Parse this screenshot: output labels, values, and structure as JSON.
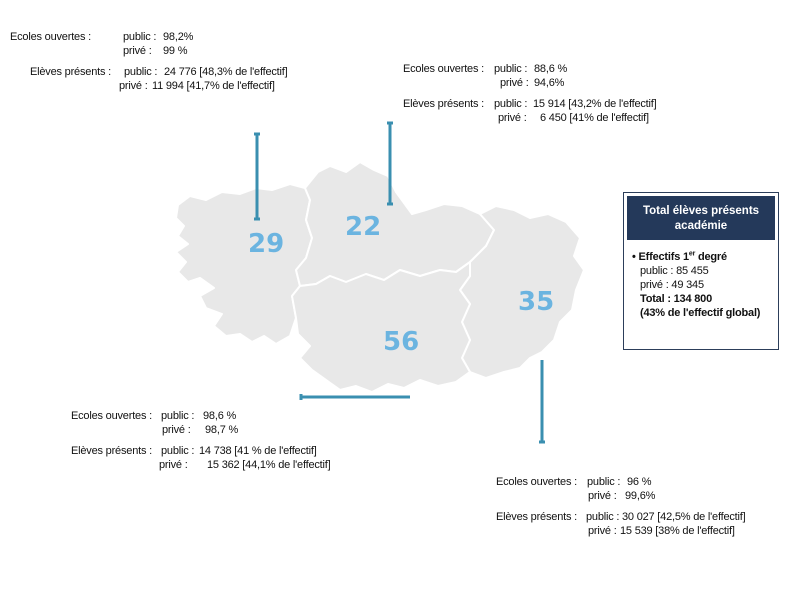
{
  "colors": {
    "map_fill": "#e8e8e8",
    "map_stroke": "#ffffff",
    "department_label": "#6bb4e0",
    "leader_line": "#3a8fb0",
    "box_header": "#24395a"
  },
  "departments": [
    {
      "id": "29",
      "label": "29"
    },
    {
      "id": "22",
      "label": "22"
    },
    {
      "id": "35",
      "label": "35"
    },
    {
      "id": "56",
      "label": "56"
    }
  ],
  "labels": {
    "ecoles_ouvertes": "Ecoles ouvertes :",
    "eleves_presents": "Elèves présents :",
    "public": "public :",
    "prive": "privé :"
  },
  "blocks": {
    "d29": {
      "ecoles_public": "98,2%",
      "ecoles_prive": "99 %",
      "eleves_public": "24 776 [48,3% de l'effectif]",
      "eleves_prive": "11 994 [41,7% de l'effectif]"
    },
    "d22": {
      "ecoles_public": "88,6 %",
      "ecoles_prive": "94,6%",
      "eleves_public": "15 914 [43,2% de l'effectif]",
      "eleves_prive": "6 450 [41% de l'effectif]"
    },
    "d56": {
      "ecoles_public": "98,6 %",
      "ecoles_prive": "98,7 %",
      "eleves_public": "14 738 [41 % de l'effectif]",
      "eleves_prive": "15 362 [44,1% de l'effectif]"
    },
    "d35": {
      "ecoles_public": "96 %",
      "ecoles_prive": "99,6%",
      "eleves_public": "30 027 [42,5% de l'effectif]",
      "eleves_prive": "15 539 [38% de l'effectif]"
    }
  },
  "total_box": {
    "title_line1": "Total élèves présents",
    "title_line2": "académie",
    "section_bullet": "•",
    "section_title": "Effectifs 1",
    "section_title_sup": "er",
    "section_title_end": " degré",
    "public": "public : 85 455",
    "prive": "privé : 49 345",
    "total": "Total : 134 800",
    "share": "(43% de l'effectif global)"
  }
}
